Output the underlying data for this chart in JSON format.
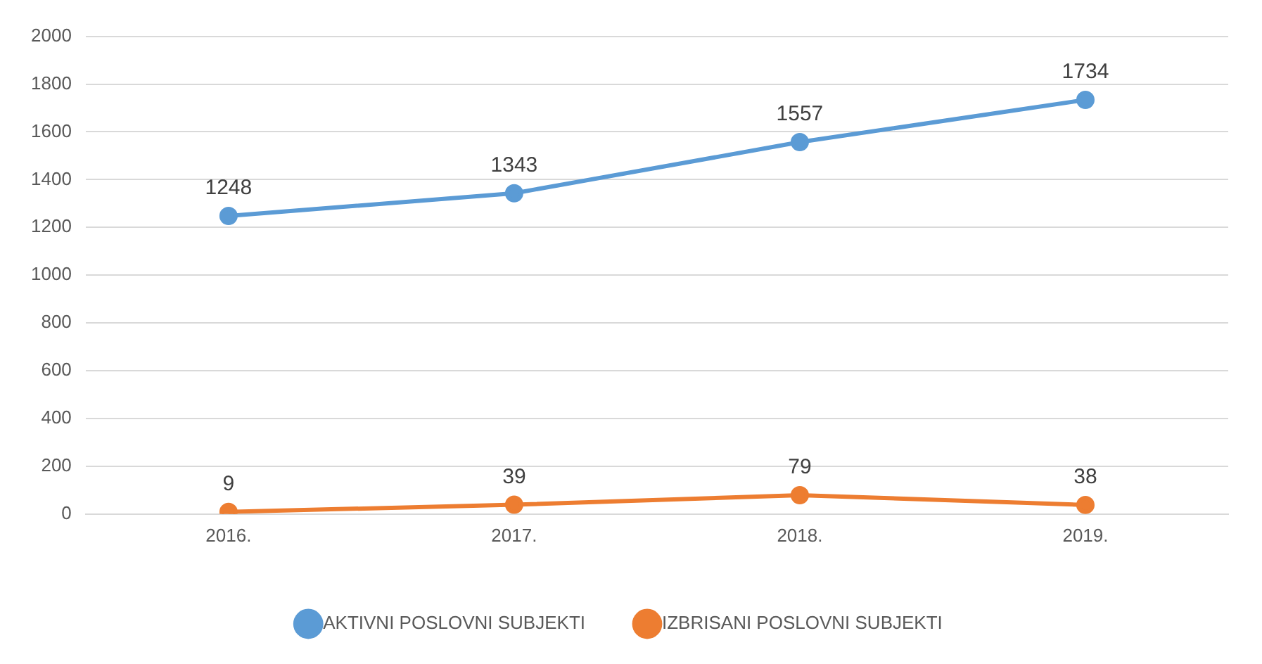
{
  "chart_data": {
    "type": "line",
    "categories": [
      "2016.",
      "2017.",
      "2018.",
      "2019."
    ],
    "series": [
      {
        "name": "AKTIVNI POSLOVNI SUBJEKTI",
        "color": "#5b9bd5",
        "values": [
          1248,
          1343,
          1557,
          1734
        ]
      },
      {
        "name": "IZBRISANI POSLOVNI SUBJEKTI",
        "color": "#ed7d31",
        "values": [
          9,
          39,
          79,
          38
        ]
      }
    ],
    "ylim": [
      0,
      2000
    ],
    "yticks": [
      0,
      200,
      400,
      600,
      800,
      1000,
      1200,
      1400,
      1600,
      1800,
      2000
    ],
    "grid": "y",
    "legend": "bottom",
    "marker": "circle",
    "line_style": "solid",
    "data_labels": true
  }
}
